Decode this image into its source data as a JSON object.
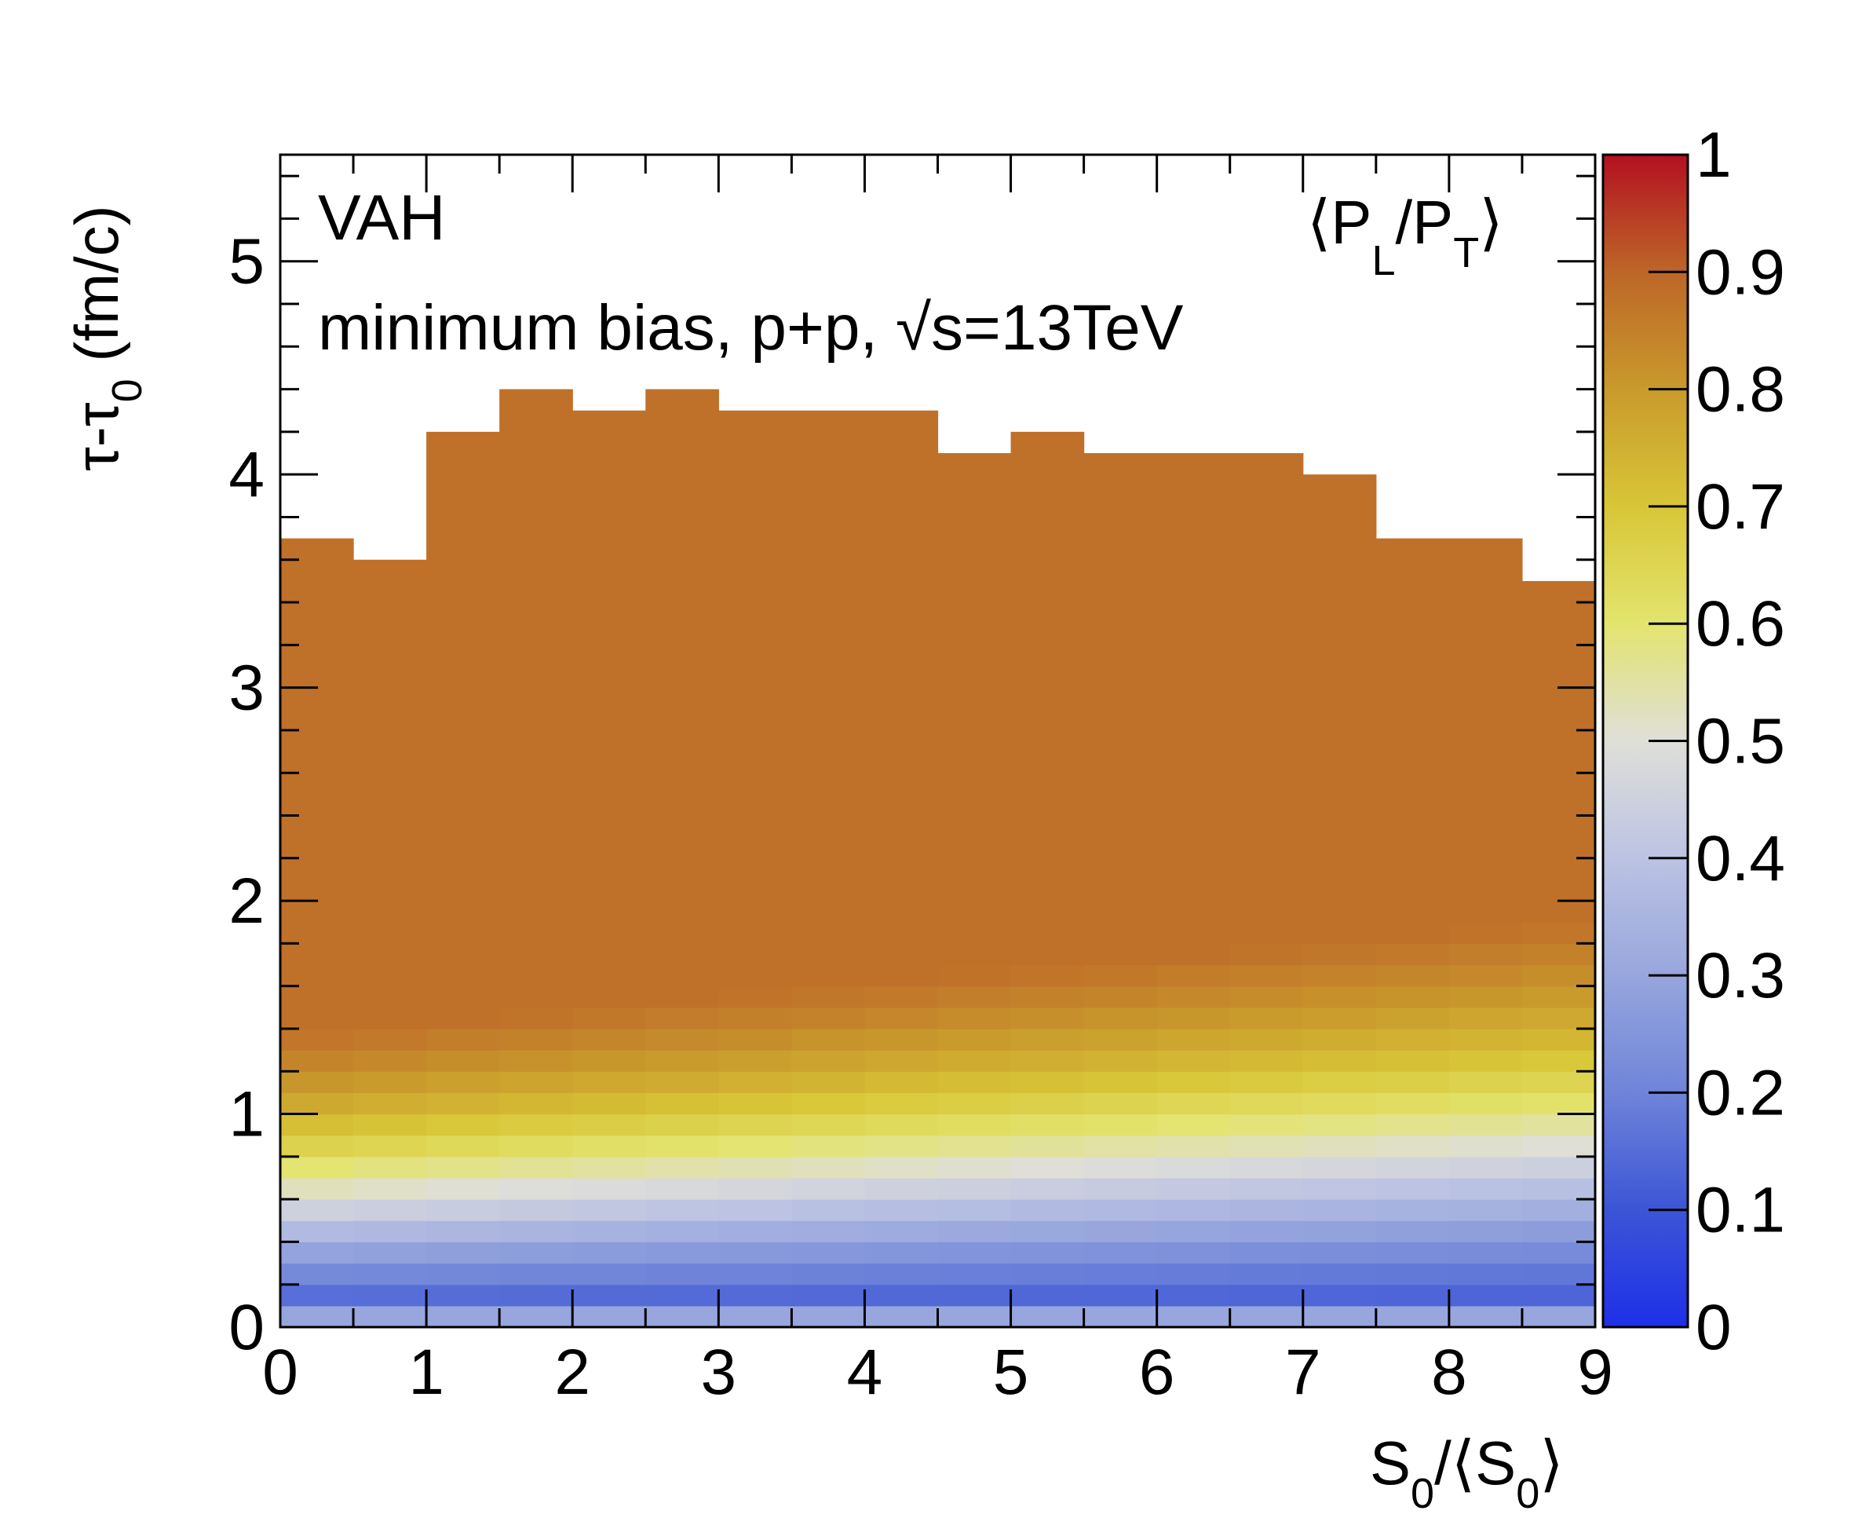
{
  "chart_data": {
    "type": "heatmap",
    "annotations": {
      "model": "VAH",
      "system_prefix": "minimum bias, p+p, ",
      "sqrt_symbol": "√",
      "system_suffix": "s=13TeV"
    },
    "xlabel": {
      "main": "S",
      "sub": "0",
      "mid": "/⟨S",
      "sub2": "0",
      "end": "⟩"
    },
    "ylabel": {
      "tau": "τ-τ",
      "sub": "0",
      "rest": " (fm/c)"
    },
    "zlabel": {
      "open": "⟨P",
      "sub1": "L",
      "mid": "/P",
      "sub2": "T",
      "close": "⟩"
    },
    "xlim": [
      0,
      9
    ],
    "ylim": [
      0,
      5.5
    ],
    "zlim": [
      0,
      1
    ],
    "x_ticks": [
      "0",
      "1",
      "2",
      "3",
      "4",
      "5",
      "6",
      "7",
      "8",
      "9"
    ],
    "y_ticks": [
      "0",
      "1",
      "2",
      "3",
      "4",
      "5"
    ],
    "z_ticks": [
      "0",
      "0.1",
      "0.2",
      "0.3",
      "0.4",
      "0.5",
      "0.6",
      "0.7",
      "0.8",
      "0.9",
      "1"
    ],
    "x_bin_width": 0.5,
    "y_bin_width": 0.1,
    "column_max_tau": [
      3.7,
      3.6,
      4.2,
      4.4,
      4.3,
      4.4,
      4.3,
      4.3,
      4.3,
      4.1,
      4.2,
      4.1,
      4.1,
      4.1,
      4.0,
      3.7,
      3.7,
      3.5
    ],
    "color_scale": [
      [
        0.0,
        "#1e2fe8"
      ],
      [
        0.1,
        "#3c55d6"
      ],
      [
        0.2,
        "#6f84d9"
      ],
      [
        0.3,
        "#97a6dd"
      ],
      [
        0.4,
        "#bcc3e3"
      ],
      [
        0.5,
        "#dfdfd8"
      ],
      [
        0.6,
        "#e3e46e"
      ],
      [
        0.7,
        "#d8c637"
      ],
      [
        0.8,
        "#c99a2c"
      ],
      [
        0.9,
        "#bd6628"
      ],
      [
        1.0,
        "#b31021"
      ]
    ],
    "profile_note": "mean PL/PT increases with tau; stripe at tau<0.1 is 0.3"
  }
}
